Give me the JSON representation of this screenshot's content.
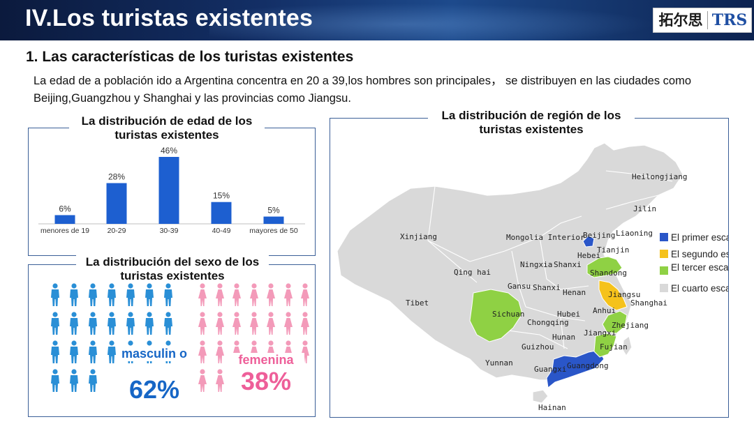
{
  "slide": {
    "title": "IV.Los turistas existentes",
    "logo_cn": "拓尔思",
    "logo_en": "TRS",
    "heading": "1. Las características de los turistas existentes",
    "paragraph": "La edad de a población ido a Argentina concentra en 20 a 39,los hombres son principales， se distribuyen en las ciudades como Beijing,Guangzhou y Shanghai y las provincias como Jiangsu."
  },
  "age": {
    "title": "La distribución de edad de los turistas existentes"
  },
  "sex": {
    "title": "La distribución del sexo de los turistas existentes",
    "male_label": "masculin o",
    "male_pct": "62%",
    "female_label": "femenina",
    "female_pct": "38%",
    "male_color": "#2a8fd6",
    "female_color": "#f39ab9",
    "male_count": 24,
    "female_count": 24
  },
  "map": {
    "title": "La distribución de región de los turistas existentes",
    "provinces": [
      "Heilongjiang",
      "Jilin",
      "Liaoning",
      "Xinjiang",
      "Mongolia Interior",
      "Beijing",
      "Tianjin",
      "Hebei",
      "Ningxia",
      "Shanxi",
      "Qing hai",
      "Shandong",
      "Gansu",
      "Shanxi",
      "Henan",
      "Jiangsu",
      "Shanghai",
      "Tibet",
      "Anhui",
      "Sichuan",
      "Hubei",
      "Chongqing",
      "Zhejiang",
      "Jiangxi",
      "Hunan",
      "Fujian",
      "Guizhou",
      "Yunnan",
      "Guangdong",
      "Guangxi",
      "Hainan"
    ],
    "legend": [
      {
        "label": "El primer escalón",
        "color": "#2a56c8"
      },
      {
        "label": "El segundo escalón",
        "color": "#f5c21b"
      },
      {
        "label": "El tercer escalón",
        "color": "#8fd144"
      },
      {
        "label": "El cuarto escalón",
        "color": "#d9d9d9"
      }
    ]
  },
  "chart_data": {
    "type": "bar",
    "title": "La distribución de edad de los turistas existentes",
    "categories": [
      "menores de 19",
      "20-29",
      "30-39",
      "40-49",
      "mayores de 50"
    ],
    "values": [
      6,
      28,
      46,
      15,
      5
    ],
    "value_labels": [
      "6%",
      "28%",
      "46%",
      "15%",
      "5%"
    ],
    "ylim": [
      0,
      46
    ],
    "color": "#1d5fd0",
    "grid": false,
    "xlabel": "",
    "ylabel": ""
  }
}
